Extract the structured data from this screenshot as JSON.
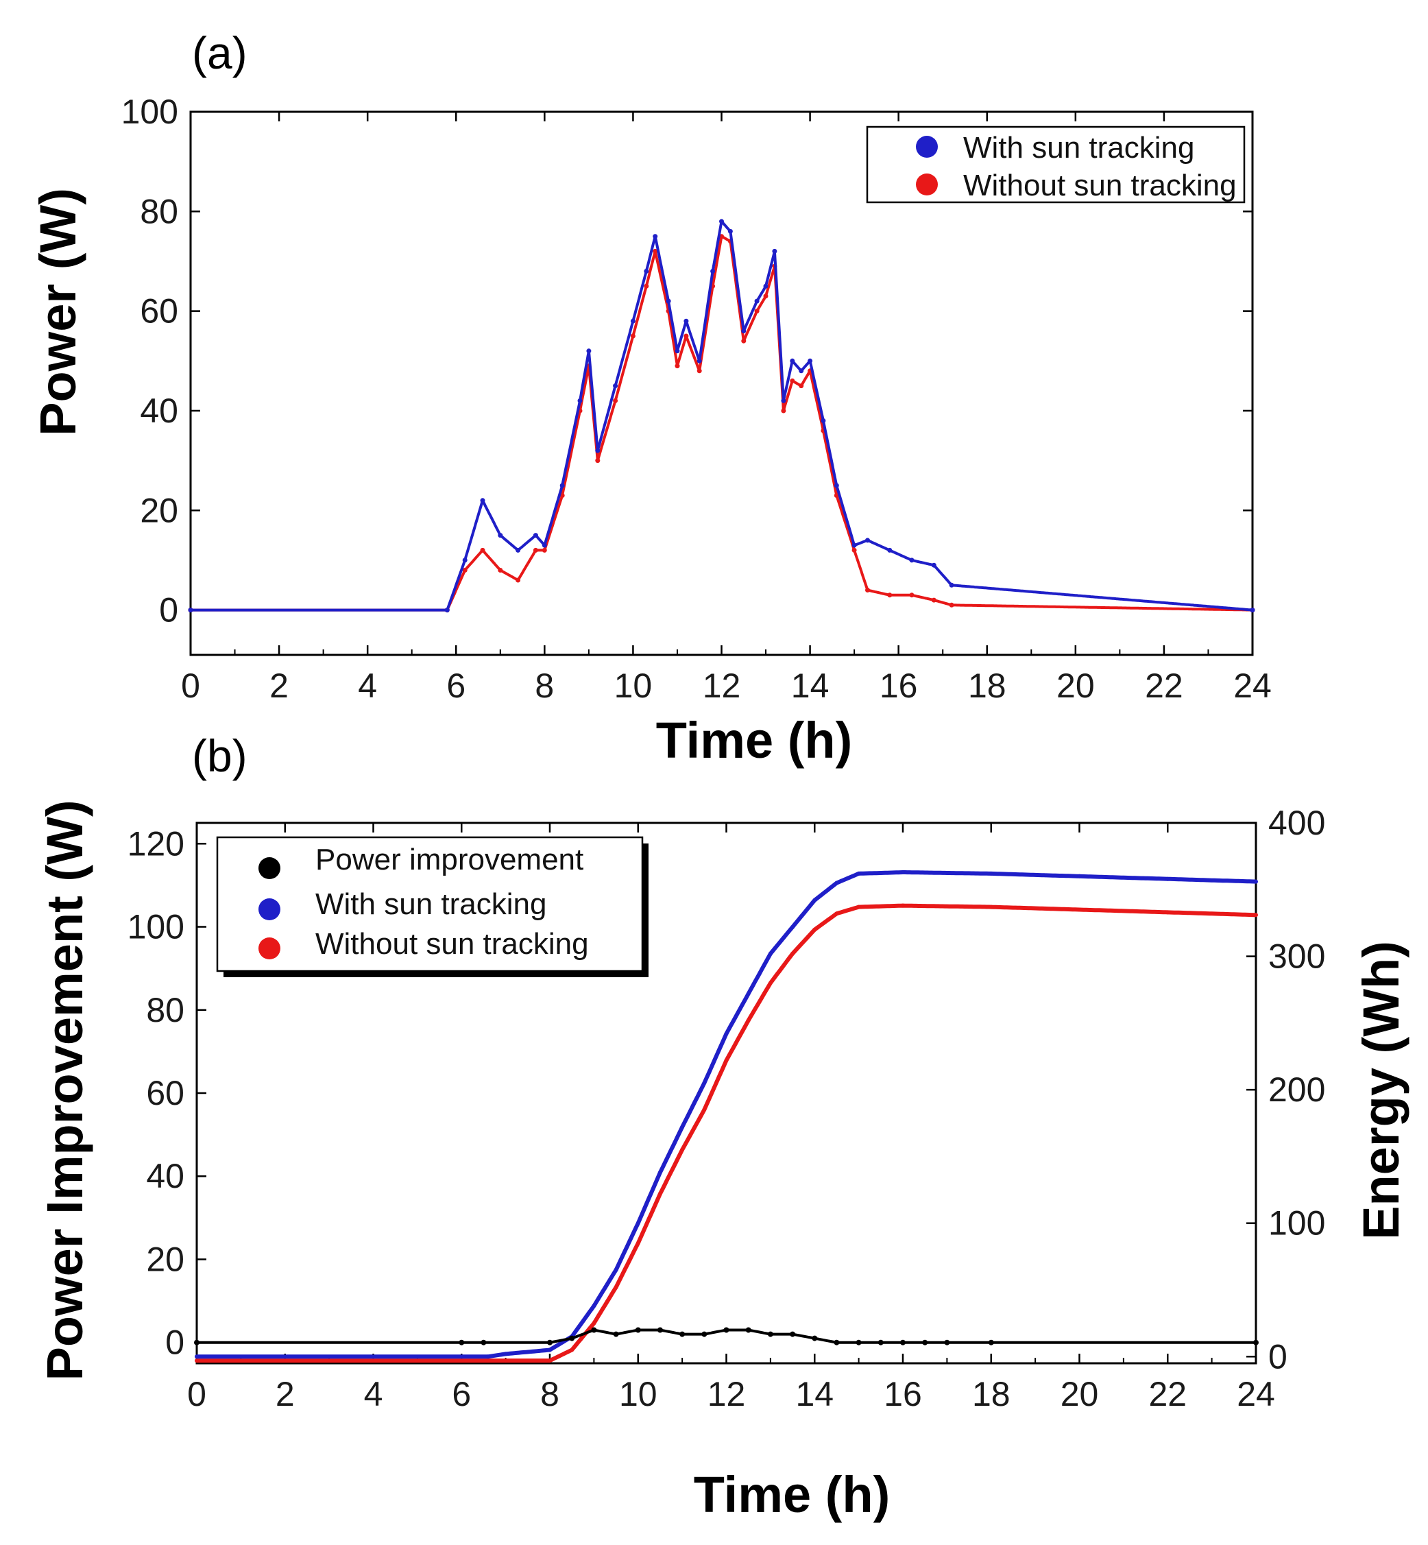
{
  "colors": {
    "with": "#1f1fc8",
    "without": "#e81818",
    "improvement": "#000000"
  },
  "chart_data": [
    {
      "type": "scatter",
      "panel_label": "(a)",
      "xlabel": "Time (h)",
      "ylabel": "Power (W)",
      "xlim": [
        0,
        24
      ],
      "ylim": [
        -9,
        100
      ],
      "xticks": [
        "0",
        "2",
        "4",
        "6",
        "8",
        "10",
        "12",
        "14",
        "16",
        "18",
        "20",
        "22",
        "24"
      ],
      "yticks": [
        "0",
        "20",
        "40",
        "60",
        "80",
        "100"
      ],
      "legend_position": "top-right",
      "series": [
        {
          "name": "With sun tracking",
          "x": [
            0,
            5.8,
            6.2,
            6.6,
            7.0,
            7.4,
            7.8,
            8.0,
            8.4,
            8.8,
            9.0,
            9.2,
            9.6,
            10.0,
            10.3,
            10.5,
            10.8,
            11.0,
            11.2,
            11.5,
            11.8,
            12.0,
            12.2,
            12.5,
            12.8,
            13.0,
            13.2,
            13.4,
            13.6,
            13.8,
            14.0,
            14.3,
            14.6,
            15.0,
            15.3,
            15.8,
            16.3,
            16.8,
            17.2,
            24
          ],
          "y": [
            0,
            0,
            10,
            22,
            15,
            12,
            15,
            13,
            25,
            42,
            52,
            32,
            45,
            58,
            68,
            75,
            62,
            52,
            58,
            50,
            68,
            78,
            76,
            56,
            62,
            65,
            72,
            42,
            50,
            48,
            50,
            38,
            25,
            13,
            14,
            12,
            10,
            9,
            5,
            0
          ]
        },
        {
          "name": "Without sun tracking",
          "x": [
            0,
            5.8,
            6.2,
            6.6,
            7.0,
            7.4,
            7.8,
            8.0,
            8.4,
            8.8,
            9.0,
            9.2,
            9.6,
            10.0,
            10.3,
            10.5,
            10.8,
            11.0,
            11.2,
            11.5,
            11.8,
            12.0,
            12.2,
            12.5,
            12.8,
            13.0,
            13.2,
            13.4,
            13.6,
            13.8,
            14.0,
            14.3,
            14.6,
            15.0,
            15.3,
            15.8,
            16.3,
            16.8,
            17.2,
            24
          ],
          "y": [
            0,
            0,
            8,
            12,
            8,
            6,
            12,
            12,
            23,
            40,
            49,
            30,
            42,
            55,
            65,
            72,
            60,
            49,
            55,
            48,
            65,
            75,
            74,
            54,
            60,
            63,
            69,
            40,
            46,
            45,
            48,
            36,
            23,
            12,
            4,
            3,
            3,
            2,
            1,
            0
          ]
        }
      ]
    },
    {
      "type": "line",
      "panel_label": "(b)",
      "xlabel": "Time (h)",
      "ylabel": "Power Improvement (W)",
      "y2label": "Energy (Wh)",
      "xlim": [
        0,
        24
      ],
      "ylim": [
        -5,
        125
      ],
      "y2lim": [
        -5,
        400
      ],
      "xticks": [
        "0",
        "2",
        "4",
        "6",
        "8",
        "10",
        "12",
        "14",
        "16",
        "18",
        "20",
        "22",
        "24"
      ],
      "yticks": [
        "0",
        "20",
        "40",
        "60",
        "80",
        "100",
        "120"
      ],
      "y2ticks": [
        "0",
        "100",
        "200",
        "300",
        "400"
      ],
      "legend_position": "top-left",
      "series": [
        {
          "name": "Power improvement",
          "axis": "left",
          "kind": "scatter",
          "x": [
            0,
            6,
            6.5,
            8,
            8.5,
            9,
            9.5,
            10,
            10.5,
            11,
            11.5,
            12,
            12.5,
            13,
            13.5,
            14,
            14.5,
            15,
            15.5,
            16,
            16.5,
            17,
            18,
            24
          ],
          "y": [
            0,
            0,
            0,
            0,
            1,
            3,
            2,
            3,
            3,
            2,
            2,
            3,
            3,
            2,
            2,
            1,
            0,
            0,
            0,
            0,
            0,
            0,
            0,
            0
          ]
        },
        {
          "name": "With sun tracking",
          "axis": "right",
          "kind": "line",
          "x": [
            0,
            6.6,
            7,
            8,
            8.5,
            9,
            9.5,
            10,
            10.5,
            11,
            11.5,
            12,
            12.5,
            13,
            13.5,
            14,
            14.5,
            15,
            16,
            18,
            20,
            22,
            24
          ],
          "y": [
            0,
            0,
            2,
            5,
            15,
            38,
            65,
            100,
            138,
            172,
            205,
            242,
            272,
            302,
            322,
            342,
            355,
            362,
            363,
            362,
            360,
            358,
            356
          ]
        },
        {
          "name": "Without sun tracking",
          "axis": "right",
          "kind": "line",
          "x": [
            0,
            6.6,
            7,
            8,
            8.5,
            9,
            9.5,
            10,
            10.5,
            11,
            11.5,
            12,
            12.5,
            13,
            13.5,
            14,
            14.5,
            15,
            16,
            18,
            20,
            22,
            24
          ],
          "y": [
            -3,
            -3,
            -3,
            -3,
            5,
            25,
            52,
            85,
            122,
            155,
            185,
            222,
            252,
            280,
            302,
            320,
            332,
            337,
            338,
            337,
            335,
            333,
            331
          ]
        }
      ]
    }
  ]
}
